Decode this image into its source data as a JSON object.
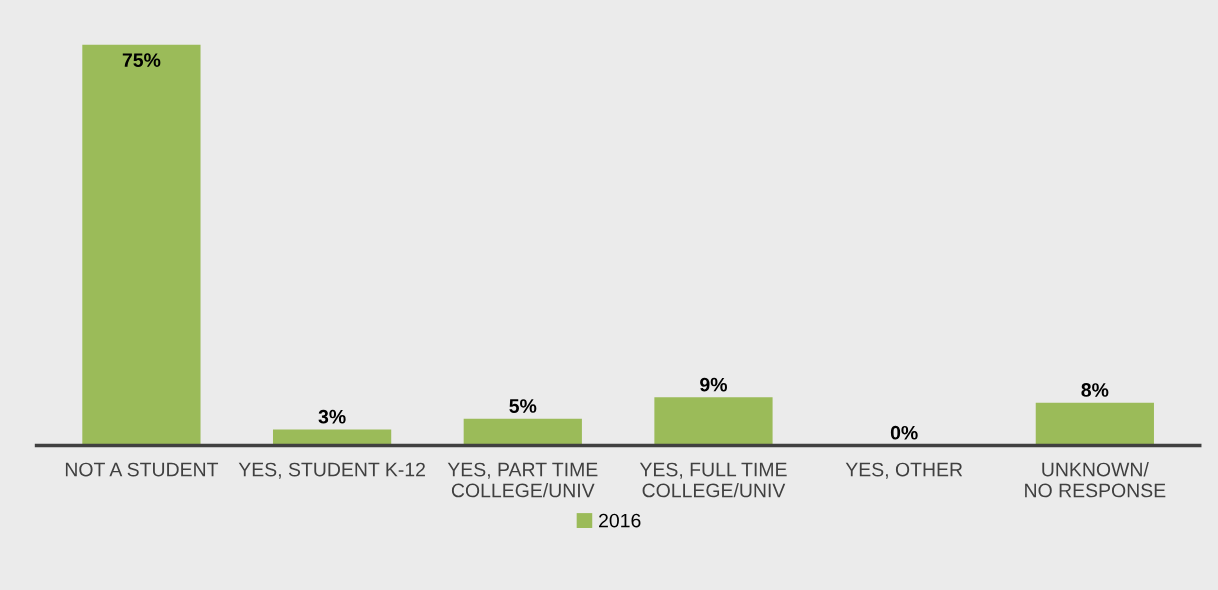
{
  "chart_data": {
    "type": "bar",
    "categories": [
      "NOT A STUDENT",
      "YES, STUDENT K-12",
      "YES, PART TIME\nCOLLEGE/UNIV",
      "YES, FULL TIME\nCOLLEGE/UNIV",
      "YES, OTHER",
      "UNKNOWN/\nNO RESPONSE"
    ],
    "series": [
      {
        "name": "2016",
        "color": "#9bbb59",
        "values": [
          75,
          3,
          5,
          9,
          0,
          8
        ],
        "value_labels": [
          "75%",
          "3%",
          "5%",
          "9%",
          "0%",
          "8%"
        ]
      }
    ],
    "legend": "bottom",
    "grid": false
  }
}
